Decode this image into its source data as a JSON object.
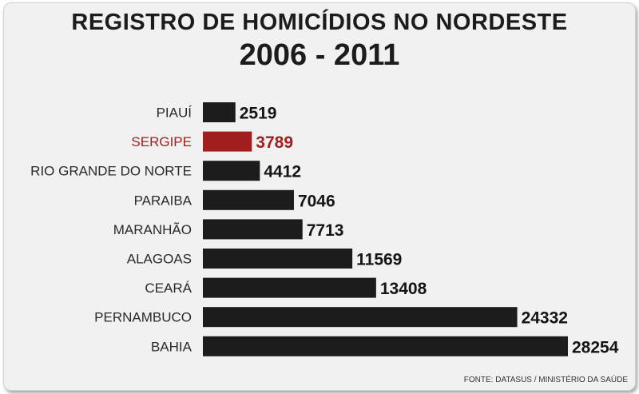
{
  "title_line1": "REGISTRO DE HOMICÍDIOS NO NORDESTE",
  "title_line2": "2006 - 2011",
  "source": "FONTE: DATASUS / MINISTÉRIO DA SAÚDE",
  "colors": {
    "bar": "#1c1c1c",
    "highlight": "#a01e1e"
  },
  "chart_data": {
    "type": "bar",
    "orientation": "horizontal",
    "title": "REGISTRO DE HOMICÍDIOS NO NORDESTE",
    "subtitle": "2006 - 2011",
    "xlabel": "",
    "ylabel": "",
    "grid": false,
    "legend": "none",
    "xlim": [
      0,
      28254
    ],
    "highlight": "SERGIPE",
    "categories": [
      "PIAUÍ",
      "SERGIPE",
      "RIO GRANDE DO NORTE",
      "PARAIBA",
      "MARANHÃO",
      "ALAGOAS",
      "CEARÁ",
      "PERNAMBUCO",
      "BAHIA"
    ],
    "values": [
      2519,
      3789,
      4412,
      7046,
      7713,
      11569,
      13408,
      24332,
      28254
    ]
  }
}
